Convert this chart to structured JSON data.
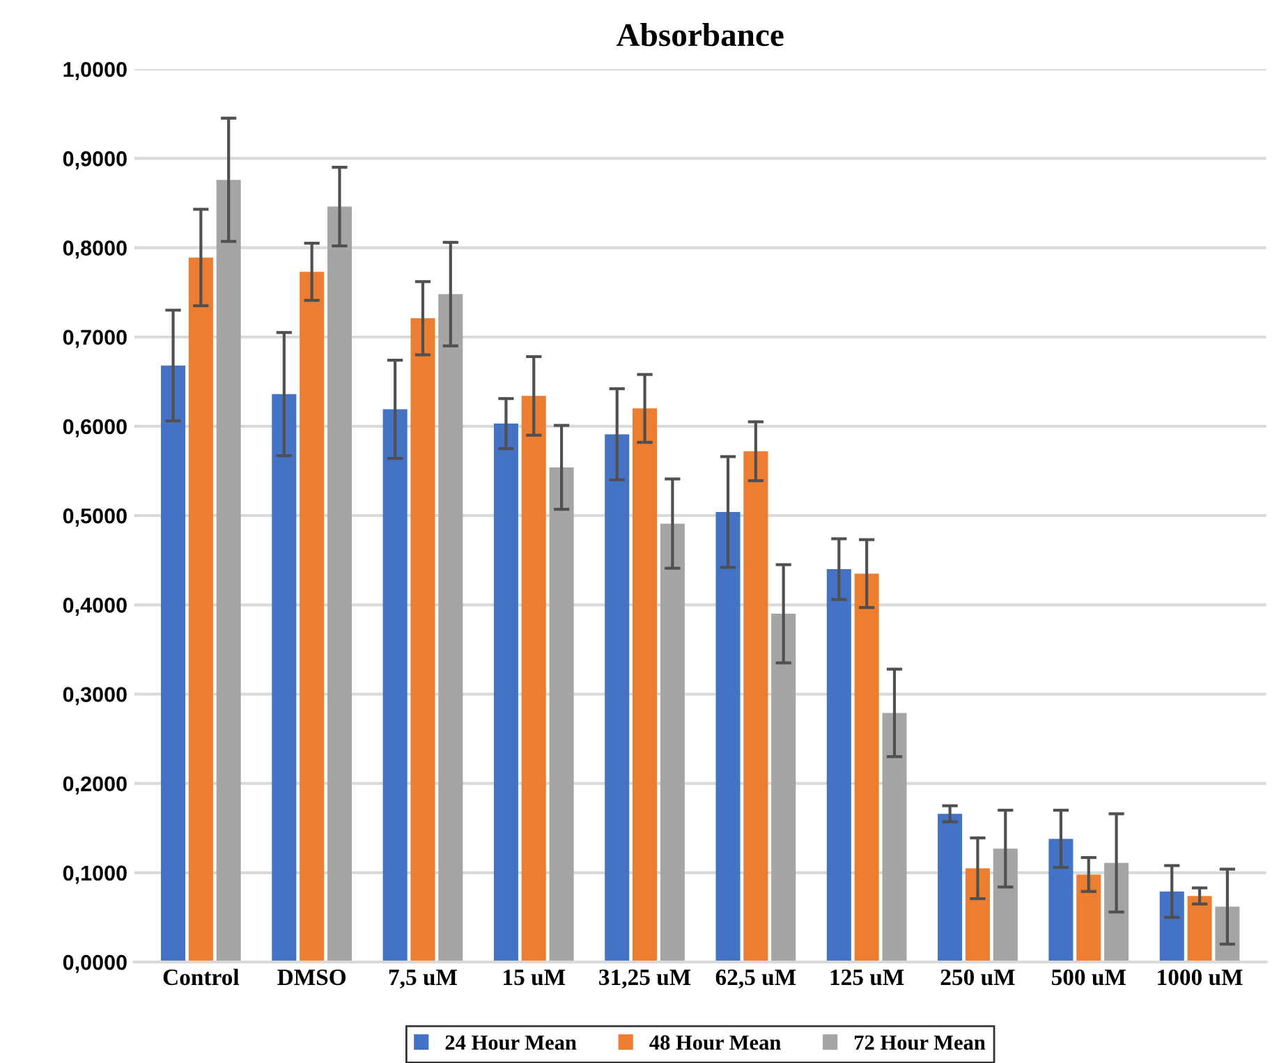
{
  "chart_data": {
    "type": "bar",
    "title": "Absorbance",
    "categories": [
      "Control",
      "DMSO",
      "7,5 uM",
      "15 uM",
      "31,25 uM",
      "62,5 uM",
      "125 uM",
      "250 uM",
      "500 uM",
      "1000 uM"
    ],
    "series": [
      {
        "name": "24 Hour Mean",
        "color": "#4472c4",
        "values": [
          0.668,
          0.636,
          0.619,
          0.603,
          0.591,
          0.504,
          0.44,
          0.166,
          0.138,
          0.079
        ],
        "errors": [
          0.062,
          0.069,
          0.055,
          0.028,
          0.051,
          0.062,
          0.034,
          0.009,
          0.032,
          0.029
        ]
      },
      {
        "name": "48 Hour Mean",
        "color": "#ed7d31",
        "values": [
          0.789,
          0.773,
          0.721,
          0.634,
          0.62,
          0.572,
          0.435,
          0.105,
          0.098,
          0.074
        ],
        "errors": [
          0.054,
          0.032,
          0.041,
          0.044,
          0.038,
          0.033,
          0.038,
          0.034,
          0.019,
          0.009
        ]
      },
      {
        "name": "72 Hour Mean",
        "color": "#a5a5a5",
        "values": [
          0.876,
          0.846,
          0.748,
          0.554,
          0.491,
          0.39,
          0.279,
          0.127,
          0.111,
          0.062
        ],
        "errors": [
          0.069,
          0.044,
          0.058,
          0.047,
          0.05,
          0.055,
          0.049,
          0.043,
          0.055,
          0.042
        ]
      }
    ],
    "ylim": [
      0,
      1
    ],
    "yticks": [
      {
        "value": 0,
        "label": "0,0000"
      },
      {
        "value": 0.1,
        "label": "0,1000"
      },
      {
        "value": 0.2,
        "label": "0,2000"
      },
      {
        "value": 0.3,
        "label": "0,3000"
      },
      {
        "value": 0.4,
        "label": "0,4000"
      },
      {
        "value": 0.5,
        "label": "0,5000"
      },
      {
        "value": 0.6,
        "label": "0,6000"
      },
      {
        "value": 0.7,
        "label": "0,7000"
      },
      {
        "value": 0.8,
        "label": "0,8000"
      },
      {
        "value": 0.9,
        "label": "0,9000"
      },
      {
        "value": 1,
        "label": "1,0000"
      }
    ],
    "grid": "y",
    "legend": "bottom"
  }
}
